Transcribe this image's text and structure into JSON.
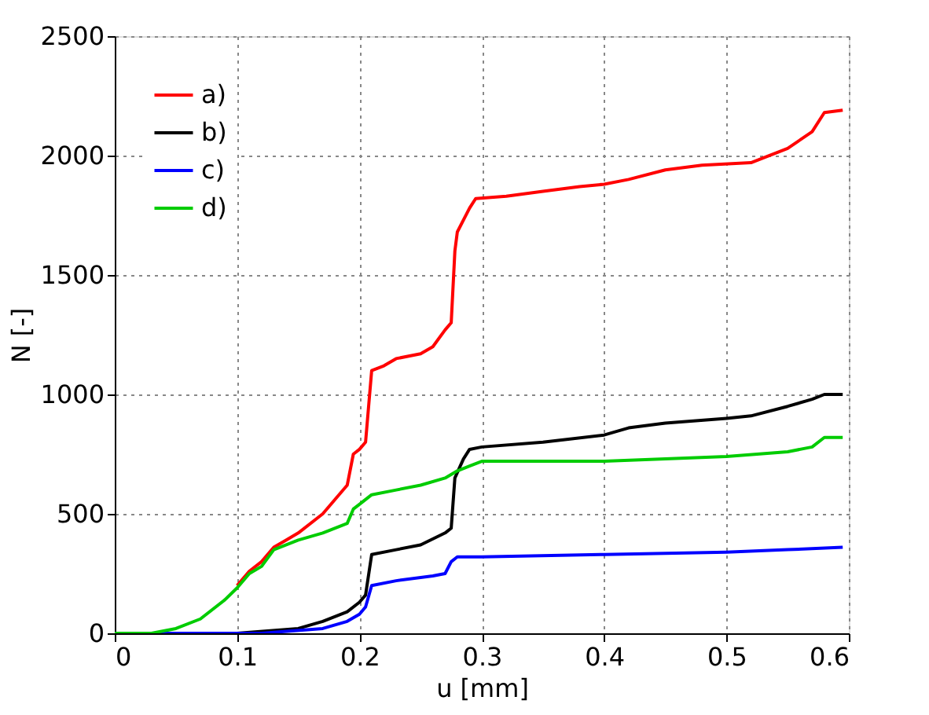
{
  "chart_data": {
    "type": "line",
    "xlabel": "u [mm]",
    "ylabel": "N [-]",
    "xlim": [
      0,
      0.6
    ],
    "xticks": [
      0,
      0.1,
      0.2,
      0.3,
      0.4,
      0.5,
      0.6
    ],
    "ylim": [
      0,
      2500
    ],
    "yticks": [
      0,
      500,
      1000,
      1500,
      2000,
      2500
    ],
    "grid": true,
    "legend": "top left",
    "line_style": "solid",
    "marker": "none",
    "series": [
      {
        "name": "a)",
        "color": "#ff0000",
        "x": [
          0.1,
          0.11,
          0.12,
          0.13,
          0.14,
          0.15,
          0.17,
          0.18,
          0.19,
          0.195,
          0.2,
          0.205,
          0.21,
          0.22,
          0.23,
          0.25,
          0.26,
          0.27,
          0.275,
          0.278,
          0.28,
          0.29,
          0.295,
          0.32,
          0.35,
          0.38,
          0.4,
          0.42,
          0.45,
          0.48,
          0.52,
          0.55,
          0.57,
          0.58,
          0.595
        ],
        "values": [
          200,
          260,
          300,
          360,
          390,
          420,
          500,
          560,
          620,
          750,
          770,
          800,
          1100,
          1120,
          1150,
          1170,
          1200,
          1270,
          1300,
          1600,
          1680,
          1780,
          1820,
          1830,
          1850,
          1870,
          1880,
          1900,
          1940,
          1960,
          1970,
          2030,
          2100,
          2180,
          2190
        ]
      },
      {
        "name": "b)",
        "color": "#000000",
        "x": [
          0,
          0.1,
          0.15,
          0.17,
          0.19,
          0.2,
          0.205,
          0.21,
          0.23,
          0.25,
          0.27,
          0.275,
          0.278,
          0.285,
          0.29,
          0.3,
          0.35,
          0.4,
          0.42,
          0.45,
          0.5,
          0.52,
          0.55,
          0.57,
          0.58,
          0.595
        ],
        "values": [
          0,
          0,
          20,
          50,
          90,
          130,
          160,
          330,
          350,
          370,
          420,
          440,
          650,
          730,
          770,
          780,
          800,
          830,
          860,
          880,
          900,
          910,
          950,
          980,
          1000,
          1000
        ]
      },
      {
        "name": "c)",
        "color": "#0000ff",
        "x": [
          0,
          0.12,
          0.17,
          0.19,
          0.2,
          0.205,
          0.21,
          0.23,
          0.26,
          0.27,
          0.275,
          0.28,
          0.3,
          0.4,
          0.5,
          0.55,
          0.595
        ],
        "values": [
          0,
          0,
          20,
          50,
          80,
          110,
          200,
          220,
          240,
          250,
          300,
          320,
          320,
          330,
          340,
          350,
          360
        ]
      },
      {
        "name": "d)",
        "color": "#00cc00",
        "x": [
          0,
          0.03,
          0.05,
          0.07,
          0.09,
          0.1,
          0.11,
          0.12,
          0.13,
          0.15,
          0.17,
          0.19,
          0.195,
          0.2,
          0.21,
          0.23,
          0.25,
          0.27,
          0.28,
          0.29,
          0.3,
          0.4,
          0.5,
          0.55,
          0.57,
          0.58,
          0.595
        ],
        "values": [
          0,
          0,
          20,
          60,
          140,
          190,
          250,
          280,
          350,
          390,
          420,
          460,
          520,
          540,
          580,
          600,
          620,
          650,
          680,
          700,
          720,
          720,
          740,
          760,
          780,
          820,
          820
        ]
      }
    ]
  }
}
